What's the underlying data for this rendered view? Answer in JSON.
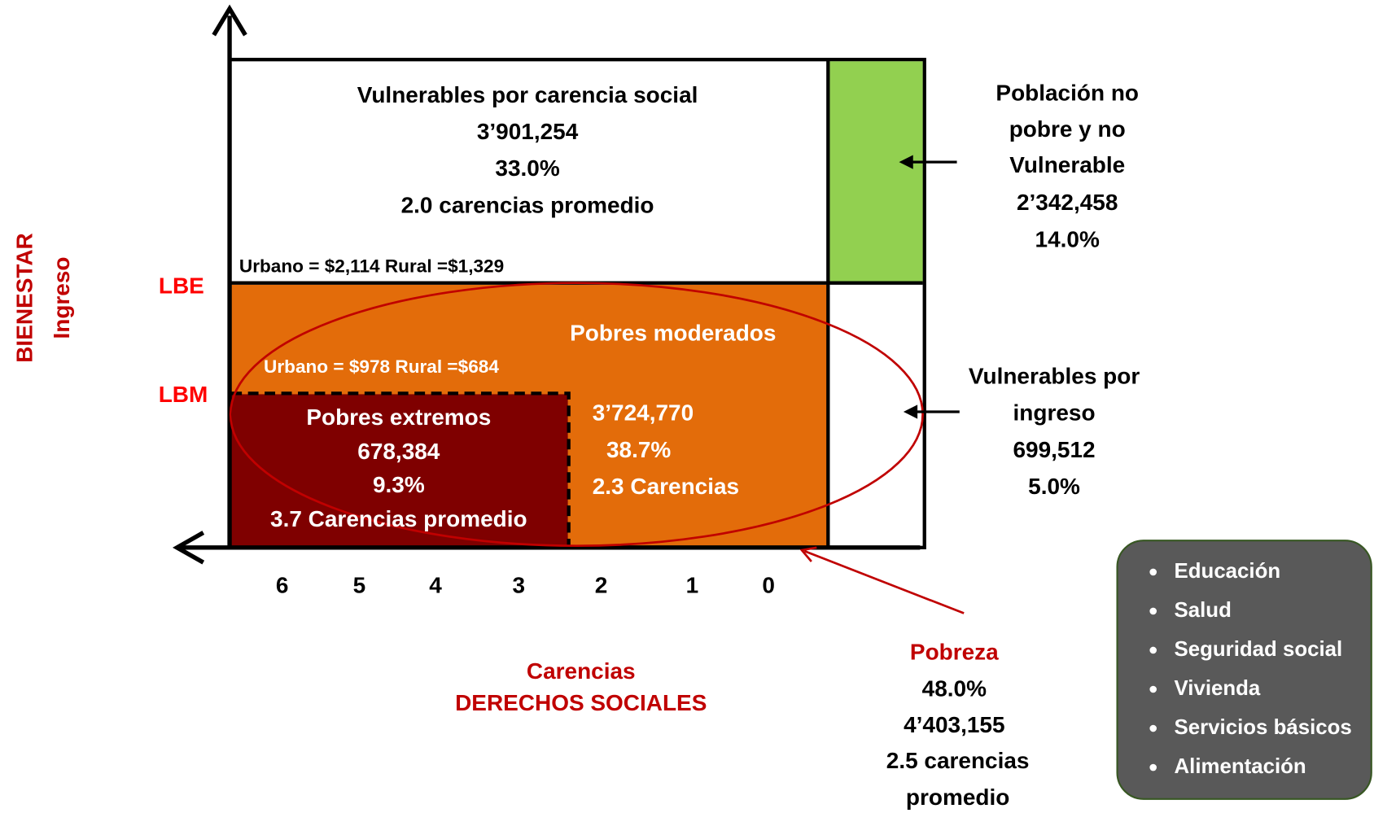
{
  "axes": {
    "y_label": "BIENESTAR",
    "y_sublabel": "Ingreso",
    "x_label": "Carencias",
    "x_sublabel": "DERECHOS SOCIALES",
    "x_ticks": [
      "6",
      "5",
      "4",
      "3",
      "2",
      "1",
      "0"
    ],
    "lbe": "LBE",
    "lbm": "LBM"
  },
  "vulnerables_carencia": {
    "title": "Vulnerables por carencia social",
    "count": "3’901,254",
    "percent": "33.0%",
    "note": "2.0 carencias promedio"
  },
  "lbe_threshold": "Urbano = $2,114 Rural =$1,329",
  "lbm_threshold": "Urbano = $978 Rural =$684",
  "pobres_moderados": {
    "title": "Pobres moderados",
    "count": "3’724,770",
    "percent": "38.7%",
    "note": "2.3 Carencias"
  },
  "pobres_extremos": {
    "title": "Pobres extremos",
    "count": "678,384",
    "percent": "9.3%",
    "note": "3.7 Carencias promedio"
  },
  "no_pobre": {
    "lines": [
      "Población no",
      "pobre y no",
      "Vulnerable"
    ],
    "count": "2’342,458",
    "percent": "14.0%"
  },
  "vulnerables_ingreso": {
    "lines": [
      "Vulnerables por",
      "ingreso"
    ],
    "count": "699,512",
    "percent": "5.0%"
  },
  "pobreza": {
    "title": "Pobreza",
    "percent": "48.0%",
    "count": "4’403,155",
    "note_lines": [
      "2.5 carencias",
      "promedio"
    ]
  },
  "carencias_list": [
    "Educación",
    "Salud",
    "Seguridad social",
    "Vivienda",
    "Servicios básicos",
    "Alimentación"
  ]
}
